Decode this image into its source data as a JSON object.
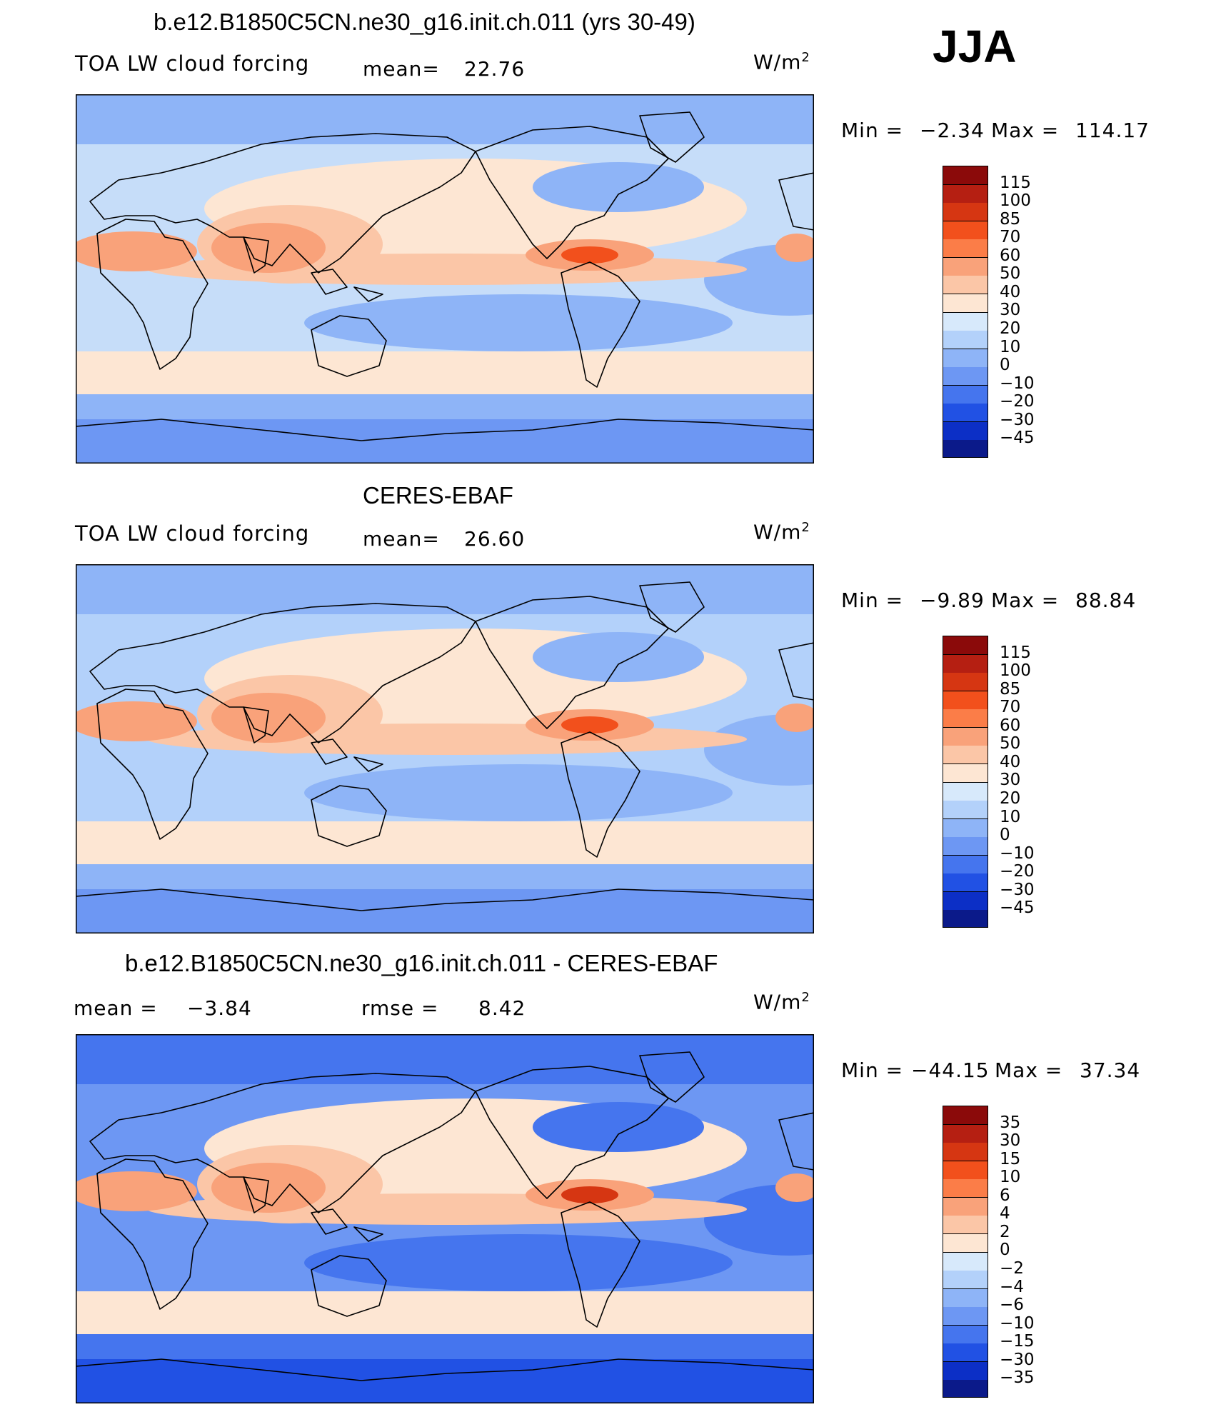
{
  "season": "JJA",
  "panels": [
    {
      "title": "b.e12.B1850C5CN.ne30_g16.init.ch.011 (yrs 30-49)",
      "variable": "TOA LW cloud forcing",
      "stat1_label": "mean=",
      "stat1_value": "22.76",
      "stat2_label": "",
      "stat2_value": "",
      "units_base": "W/m",
      "units_exp": "2",
      "min_label": "Min =",
      "min_value": "−2.34",
      "max_label": "Max =",
      "max_value": "114.17",
      "colorbar_labels": [
        "115",
        "100",
        "85",
        "70",
        "60",
        "50",
        "40",
        "30",
        "20",
        "10",
        "0",
        "−10",
        "−20",
        "−30",
        "−45"
      ],
      "colorbar_colors": [
        "#8b0a0a",
        "#b51f12",
        "#d63612",
        "#f2501c",
        "#fb7d48",
        "#f9a27a",
        "#fbc6a7",
        "#fde6d3",
        "#d7e9fb",
        "#b3d1fa",
        "#8eb4f7",
        "#6d97f3",
        "#4575ee",
        "#2151e4",
        "#0c2fc6",
        "#0b1a8a"
      ],
      "map_colors": {
        "bg": "#c6ddf9",
        "cool": "#8eb4f7",
        "cold": "#6d97f3",
        "deep": "#4575ee",
        "warm": "#fde6d3",
        "hot": "#fbc6a7",
        "hotter": "#f9a27a",
        "hottest": "#f2501c"
      }
    },
    {
      "title": "CERES-EBAF",
      "variable": "TOA LW cloud forcing",
      "stat1_label": "mean=",
      "stat1_value": "26.60",
      "stat2_label": "",
      "stat2_value": "",
      "units_base": "W/m",
      "units_exp": "2",
      "min_label": "Min =",
      "min_value": "−9.89",
      "max_label": "Max =",
      "max_value": "88.84",
      "colorbar_labels": [
        "115",
        "100",
        "85",
        "70",
        "60",
        "50",
        "40",
        "30",
        "20",
        "10",
        "0",
        "−10",
        "−20",
        "−30",
        "−45"
      ],
      "colorbar_colors": [
        "#8b0a0a",
        "#b51f12",
        "#d63612",
        "#f2501c",
        "#fb7d48",
        "#f9a27a",
        "#fbc6a7",
        "#fde6d3",
        "#d7e9fb",
        "#b3d1fa",
        "#8eb4f7",
        "#6d97f3",
        "#4575ee",
        "#2151e4",
        "#0c2fc6",
        "#0b1a8a"
      ],
      "map_colors": {
        "bg": "#b3d1fa",
        "cool": "#8eb4f7",
        "cold": "#6d97f3",
        "deep": "#4575ee",
        "warm": "#fde6d3",
        "hot": "#fbc6a7",
        "hotter": "#f9a27a",
        "hottest": "#f2501c"
      }
    },
    {
      "title": "b.e12.B1850C5CN.ne30_g16.init.ch.011 - CERES-EBAF",
      "variable": "",
      "stat1_label": "mean =",
      "stat1_value": "−3.84",
      "stat2_label": "rmse =",
      "stat2_value": "8.42",
      "units_base": "W/m",
      "units_exp": "2",
      "min_label": "Min =",
      "min_value": "−44.15",
      "max_label": "Max =",
      "max_value": "37.34",
      "colorbar_labels": [
        "35",
        "30",
        "15",
        "10",
        "6",
        "4",
        "2",
        "0",
        "−2",
        "−4",
        "−6",
        "−10",
        "−15",
        "−30",
        "−35"
      ],
      "colorbar_colors": [
        "#8b0a0a",
        "#b51f12",
        "#d63612",
        "#f2501c",
        "#fb7d48",
        "#f9a27a",
        "#fbc6a7",
        "#fde6d3",
        "#d7e9fb",
        "#b3d1fa",
        "#8eb4f7",
        "#6d97f3",
        "#4575ee",
        "#2151e4",
        "#0c2fc6",
        "#0b1a8a"
      ],
      "map_colors": {
        "bg": "#6d97f3",
        "cool": "#4575ee",
        "cold": "#2151e4",
        "deep": "#0c2fc6",
        "warm": "#fde6d3",
        "hot": "#fbc6a7",
        "hotter": "#f9a27a",
        "hottest": "#d63612"
      }
    }
  ]
}
